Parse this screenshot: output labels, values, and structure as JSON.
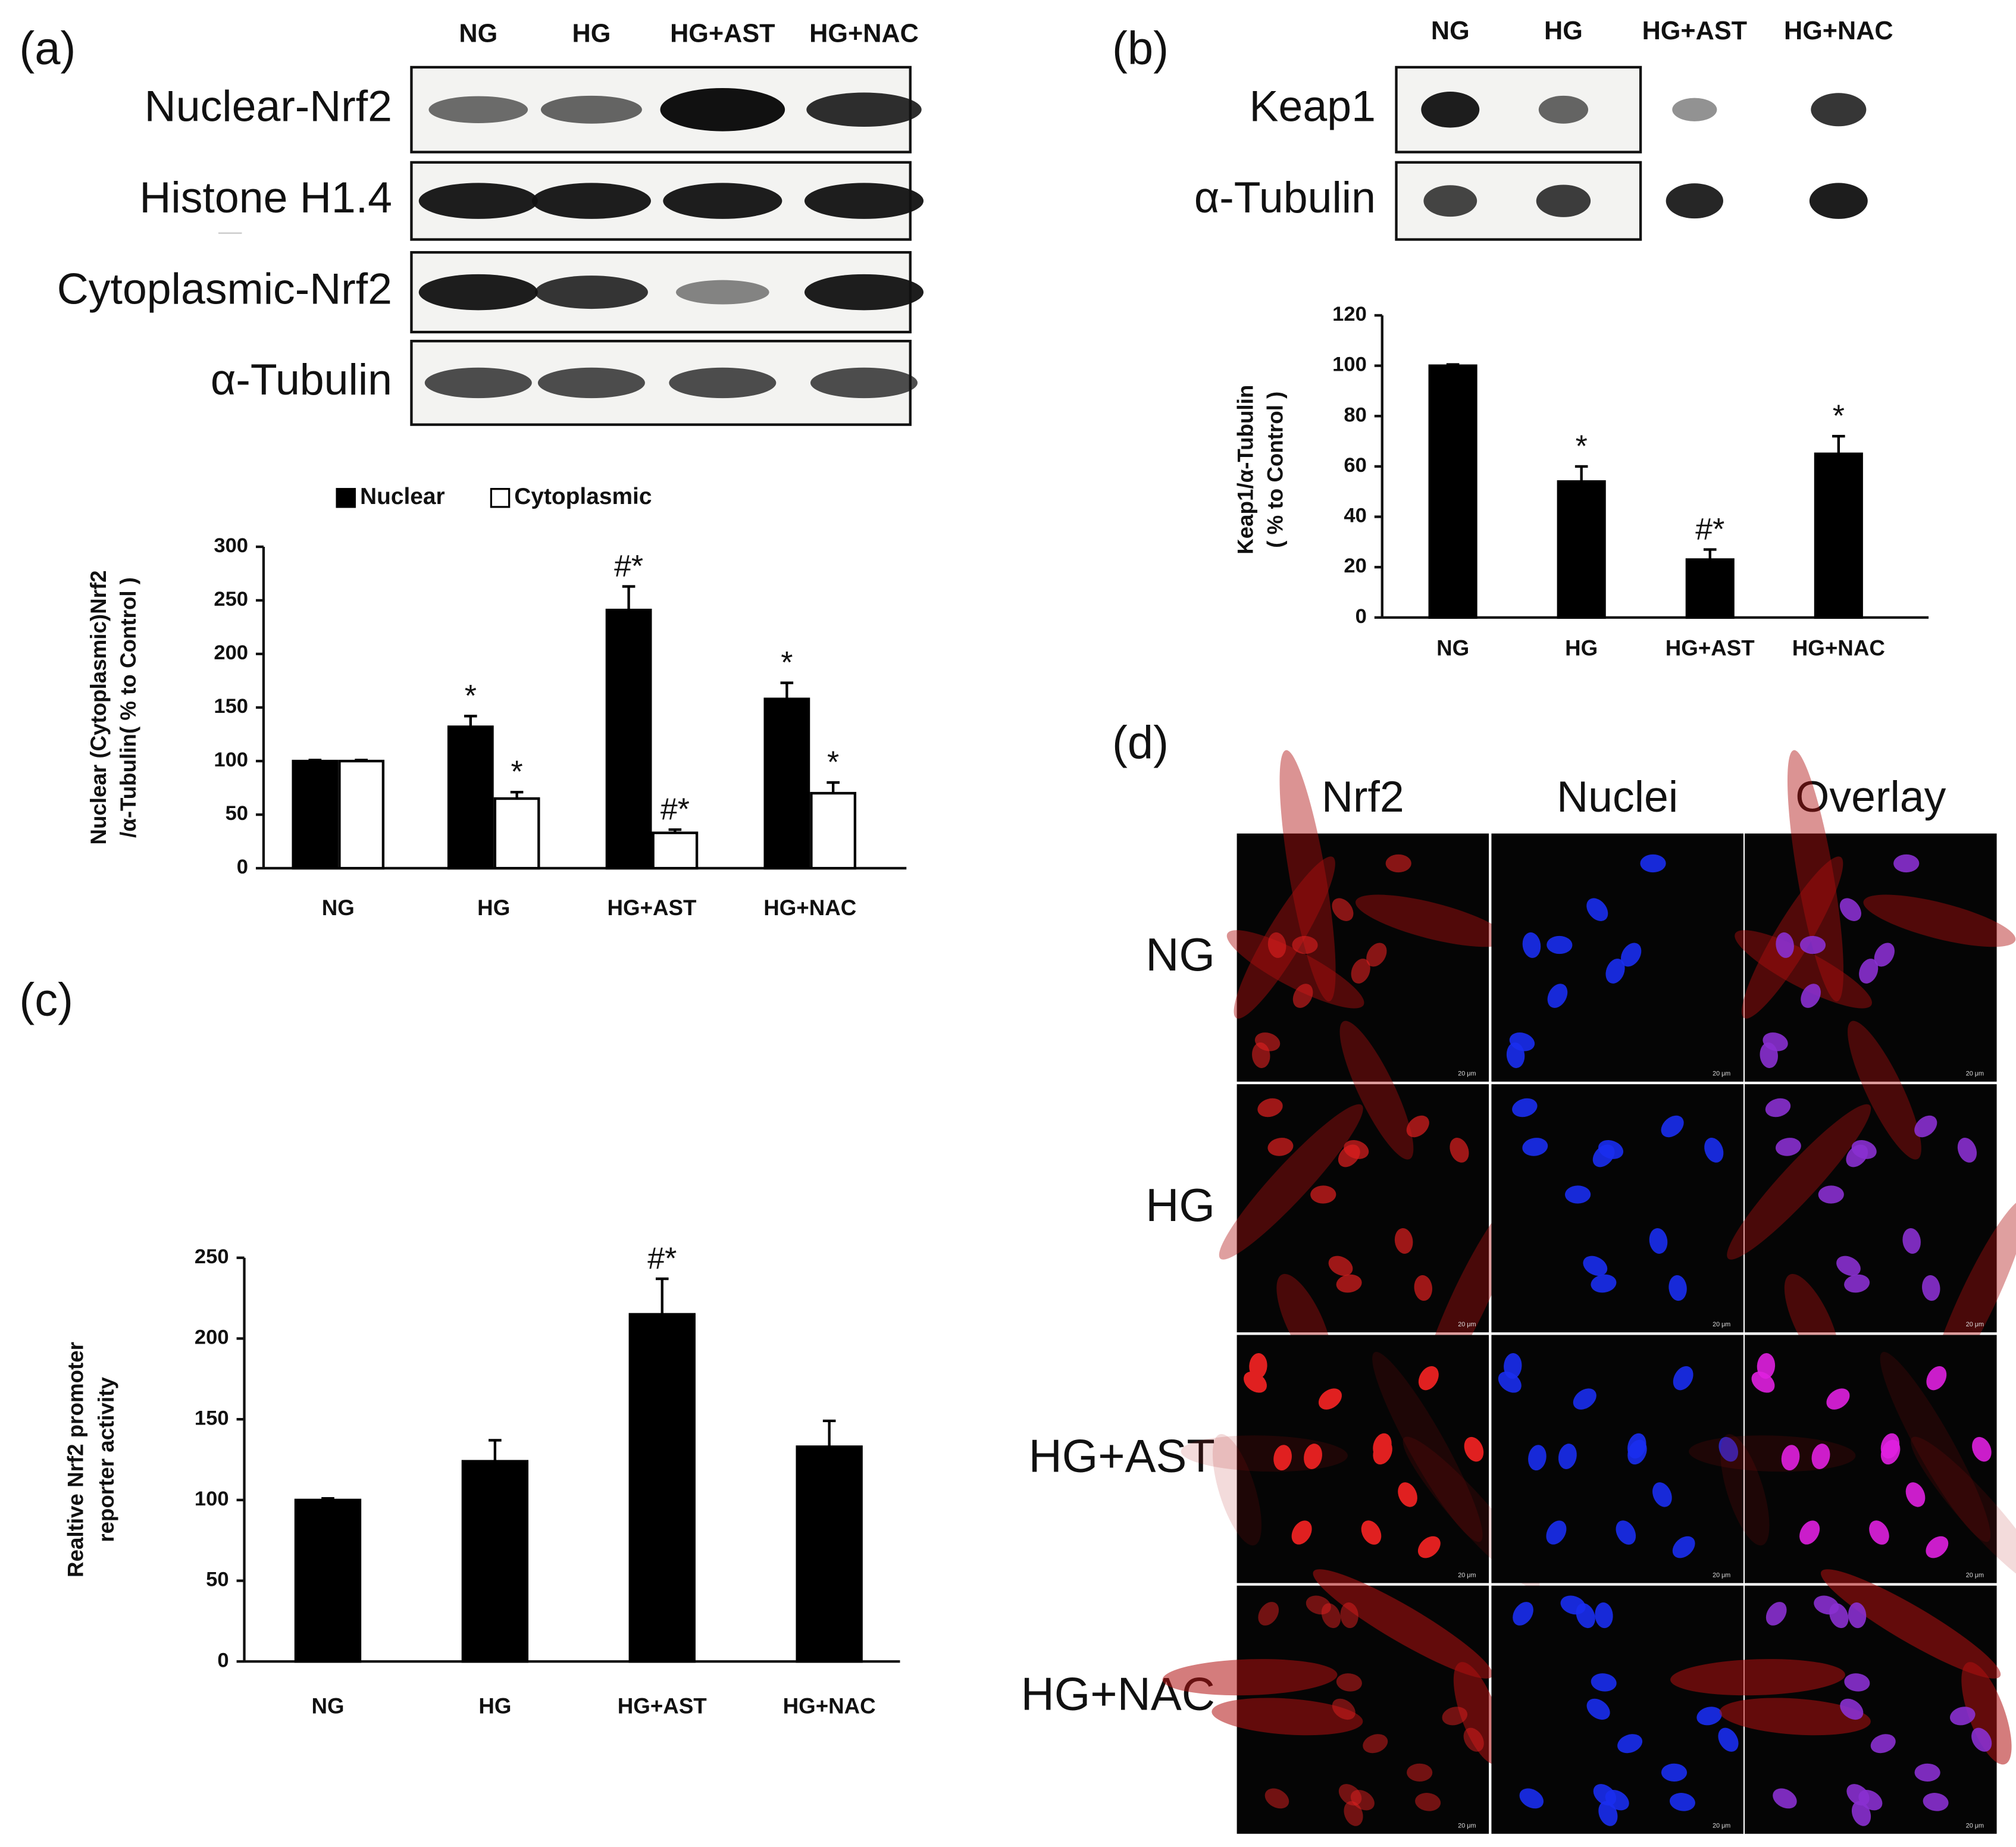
{
  "chart_data": [
    {
      "type": "bar",
      "ylabel": [
        "Nuclear (Cytoplasmic)Nrf2",
        "/α-Tubulin( % to Control )"
      ],
      "categories": [
        "NG",
        "HG",
        "HG+AST",
        "HG+NAC"
      ],
      "series": [
        {
          "name": "Nuclear",
          "color": "#000000",
          "values": [
            100,
            132,
            241,
            158
          ],
          "errors": [
            1,
            10,
            22,
            15
          ],
          "annotations": [
            null,
            "*",
            "#*",
            "*"
          ]
        },
        {
          "name": "Cytoplasmic",
          "color": "#ffffff",
          "values": [
            100,
            65,
            33,
            70
          ],
          "errors": [
            1,
            6,
            3,
            10
          ],
          "annotations": [
            null,
            "*",
            "#*",
            "*"
          ]
        }
      ],
      "ylim": [
        0,
        300
      ],
      "yticks": [
        0,
        50,
        100,
        150,
        200,
        250,
        300
      ],
      "legend": "top"
    },
    {
      "type": "bar",
      "ylabel": [
        "Keap1/α-Tubulin",
        "( % to Control )"
      ],
      "categories": [
        "NG",
        "HG",
        "HG+AST",
        "HG+NAC"
      ],
      "color": "#000000",
      "values": [
        100,
        54,
        23,
        65
      ],
      "errors": [
        0.5,
        6,
        4,
        7
      ],
      "annotations": [
        null,
        "*",
        "#*",
        "*"
      ],
      "ylim": [
        0,
        120
      ],
      "yticks": [
        0,
        20,
        40,
        60,
        80,
        100,
        120
      ]
    },
    {
      "type": "bar",
      "label": "(c)",
      "ylabel": [
        "Realtive Nrf2 promoter",
        "reporter activity"
      ],
      "categories": [
        "NG",
        "HG",
        "HG+AST",
        "HG+NAC"
      ],
      "color": "#000000",
      "values": [
        100,
        124,
        215,
        133
      ],
      "errors": [
        1,
        13,
        22,
        16
      ],
      "annotations": [
        null,
        null,
        "#*",
        null
      ],
      "ylim": [
        0,
        250
      ],
      "yticks": [
        0,
        50,
        100,
        150,
        200,
        250
      ]
    }
  ],
  "blots": [
    {
      "panel": "(a)",
      "lanes": [
        "NG",
        "HG",
        "HG+AST",
        "HG+NAC"
      ],
      "rows": [
        "Nuclear-Nrf2",
        "Histone H1.4",
        "Cytoplasmic-Nrf2",
        "α-Tubulin"
      ]
    },
    {
      "panel": "(b)",
      "lanes": [
        "NG",
        "HG",
        "HG+AST",
        "HG+NAC"
      ],
      "rows": [
        "Keap1",
        "α-Tubulin"
      ]
    }
  ],
  "microscopy": {
    "panel": "(d)",
    "columns": [
      "Nrf2",
      "Nuclei",
      "Overlay"
    ],
    "rows": [
      "NG",
      "HG",
      "HG+AST",
      "HG+NAC"
    ],
    "scale_bar": "20 μm"
  }
}
